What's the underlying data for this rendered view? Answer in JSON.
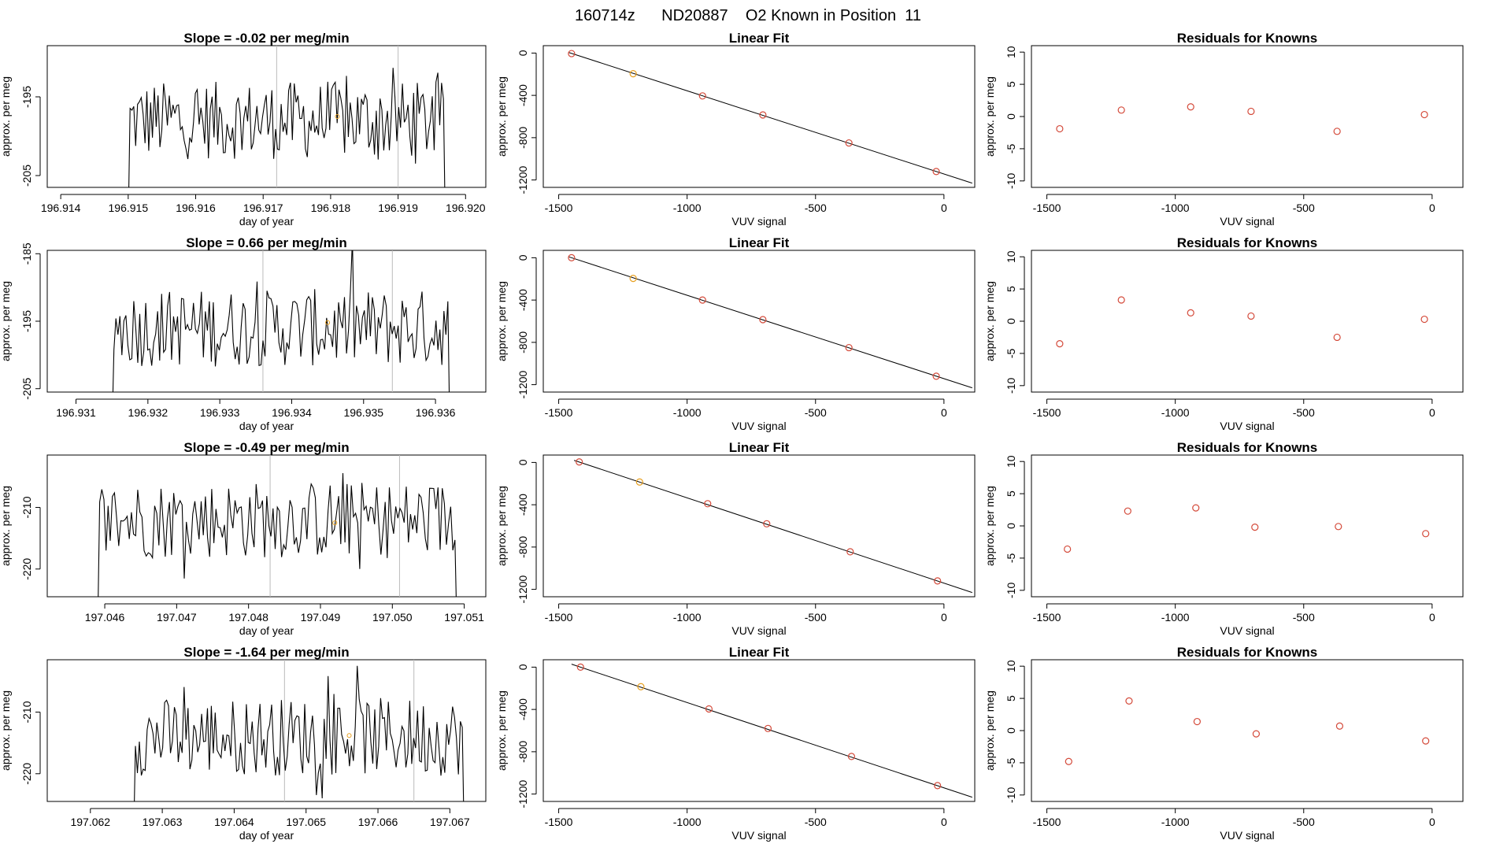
{
  "figure_title": "160714z      ND20887    O2 Known in Position  11",
  "colors": {
    "line": "#000000",
    "point": "#d44a3a",
    "highlight": "#e8a020",
    "vline": "#bbbbbb",
    "frame": "#000000"
  },
  "chart_data": [
    {
      "row": 0,
      "panel": "time",
      "type": "line",
      "title": "Slope =  -0.02  per meg/min",
      "xlabel": "day of year",
      "ylabel": "approx. per meg",
      "xlim": [
        196.9138,
        196.9203
      ],
      "ylim": [
        -206.5,
        -188.5
      ],
      "xticks": [
        196.914,
        196.915,
        196.916,
        196.917,
        196.918,
        196.919,
        196.92
      ],
      "xtick_labels": [
        "196.914",
        "196.915",
        "196.916",
        "196.917",
        "196.918",
        "196.919",
        "196.920"
      ],
      "yticks": [
        -195,
        -205
      ],
      "ytick_labels": [
        "-195",
        "-205"
      ],
      "x_start": 196.915,
      "x_end": 196.9197,
      "mean": -198,
      "vlines": [
        196.9172,
        196.919
      ],
      "highlight_point": [
        196.9181,
        -197.5
      ]
    },
    {
      "row": 0,
      "panel": "fit",
      "type": "scatter",
      "title": "Linear Fit",
      "xlabel": "VUV signal",
      "ylabel": "approx. per meg",
      "xlim": [
        -1560,
        120
      ],
      "ylim": [
        -1270,
        70
      ],
      "xticks": [
        -1500,
        -1000,
        -500,
        0
      ],
      "xtick_labels": [
        "-1500",
        "-1000",
        "-500",
        "0"
      ],
      "yticks": [
        0,
        -400,
        -800,
        -1200
      ],
      "ytick_labels": [
        "0",
        "-400",
        "-800",
        "-1200"
      ],
      "points": [
        [
          -1450,
          -5
        ],
        [
          -1210,
          -195
        ],
        [
          -940,
          -405
        ],
        [
          -705,
          -585
        ],
        [
          -370,
          -850
        ],
        [
          -30,
          -1120
        ]
      ],
      "highlight_index": 1,
      "fit_line": [
        [
          -1460,
          5
        ],
        [
          110,
          -1230
        ]
      ]
    },
    {
      "row": 0,
      "panel": "resid",
      "type": "scatter",
      "title": "Residuals for Knowns",
      "xlabel": "VUV signal",
      "ylabel": "approx. per meg",
      "xlim": [
        -1560,
        120
      ],
      "ylim": [
        -11,
        11
      ],
      "xticks": [
        -1500,
        -1000,
        -500,
        0
      ],
      "xtick_labels": [
        "-1500",
        "-1000",
        "-500",
        "0"
      ],
      "yticks": [
        10,
        5,
        0,
        -5,
        -10
      ],
      "ytick_labels": [
        "10",
        "5",
        "0",
        "-5",
        "-10"
      ],
      "points": [
        [
          -1450,
          -1.9
        ],
        [
          -1210,
          1.0
        ],
        [
          -940,
          1.5
        ],
        [
          -705,
          0.8
        ],
        [
          -370,
          -2.3
        ],
        [
          -30,
          0.3
        ]
      ]
    },
    {
      "row": 1,
      "panel": "time",
      "type": "line",
      "title": "Slope =  0.66  per meg/min",
      "xlabel": "day of year",
      "ylabel": "approx. per meg",
      "xlim": [
        196.9306,
        196.9367
      ],
      "ylim": [
        -205.5,
        -184.5
      ],
      "xticks": [
        196.931,
        196.932,
        196.933,
        196.934,
        196.935,
        196.936
      ],
      "xtick_labels": [
        "196.931",
        "196.932",
        "196.933",
        "196.934",
        "196.935",
        "196.936"
      ],
      "yticks": [
        -185,
        -195,
        -205
      ],
      "ytick_labels": [
        "-185",
        "-195",
        "-205"
      ],
      "x_start": 196.9315,
      "x_end": 196.9362,
      "mean": -196,
      "vlines": [
        196.9336,
        196.9354
      ],
      "highlight_point": [
        196.9345,
        -195.2
      ]
    },
    {
      "row": 1,
      "panel": "fit",
      "type": "scatter",
      "title": "Linear Fit",
      "xlabel": "VUV signal",
      "ylabel": "approx. per meg",
      "xlim": [
        -1560,
        120
      ],
      "ylim": [
        -1270,
        70
      ],
      "xticks": [
        -1500,
        -1000,
        -500,
        0
      ],
      "xtick_labels": [
        "-1500",
        "-1000",
        "-500",
        "0"
      ],
      "yticks": [
        0,
        -400,
        -800,
        -1200
      ],
      "ytick_labels": [
        "0",
        "-400",
        "-800",
        "-1200"
      ],
      "points": [
        [
          -1450,
          0
        ],
        [
          -1210,
          -195
        ],
        [
          -940,
          -400
        ],
        [
          -705,
          -585
        ],
        [
          -370,
          -850
        ],
        [
          -30,
          -1120
        ]
      ],
      "highlight_index": 1,
      "fit_line": [
        [
          -1460,
          8
        ],
        [
          110,
          -1230
        ]
      ]
    },
    {
      "row": 1,
      "panel": "resid",
      "type": "scatter",
      "title": "Residuals for Knowns",
      "xlabel": "VUV signal",
      "ylabel": "approx. per meg",
      "xlim": [
        -1560,
        120
      ],
      "ylim": [
        -11,
        11
      ],
      "xticks": [
        -1500,
        -1000,
        -500,
        0
      ],
      "xtick_labels": [
        "-1500",
        "-1000",
        "-500",
        "0"
      ],
      "yticks": [
        10,
        5,
        0,
        -5,
        -10
      ],
      "ytick_labels": [
        "10",
        "5",
        "0",
        "-5",
        "-10"
      ],
      "points": [
        [
          -1450,
          -3.5
        ],
        [
          -1210,
          3.3
        ],
        [
          -940,
          1.3
        ],
        [
          -705,
          0.8
        ],
        [
          -370,
          -2.5
        ],
        [
          -30,
          0.3
        ]
      ]
    },
    {
      "row": 2,
      "panel": "time",
      "type": "line",
      "title": "Slope =  -0.49  per meg/min",
      "xlabel": "day of year",
      "ylabel": "approx. per meg",
      "xlim": [
        197.0452,
        197.0513
      ],
      "ylim": [
        -224.5,
        -201.5
      ],
      "xticks": [
        197.046,
        197.047,
        197.048,
        197.049,
        197.05,
        197.051
      ],
      "xtick_labels": [
        "197.046",
        "197.047",
        "197.048",
        "197.049",
        "197.050",
        "197.051"
      ],
      "yticks": [
        -210,
        -220
      ],
      "ytick_labels": [
        "-210",
        "-220"
      ],
      "x_start": 197.0459,
      "x_end": 197.0509,
      "mean": -212,
      "vlines": [
        197.0483,
        197.0501
      ],
      "highlight_point": [
        197.0492,
        -212.5
      ]
    },
    {
      "row": 2,
      "panel": "fit",
      "type": "scatter",
      "title": "Linear Fit",
      "xlabel": "VUV signal",
      "ylabel": "approx. per meg",
      "xlim": [
        -1560,
        120
      ],
      "ylim": [
        -1270,
        70
      ],
      "xticks": [
        -1500,
        -1000,
        -500,
        0
      ],
      "xtick_labels": [
        "-1500",
        "-1000",
        "-500",
        "0"
      ],
      "yticks": [
        0,
        -400,
        -800,
        -1200
      ],
      "ytick_labels": [
        "0",
        "-400",
        "-800",
        "-1200"
      ],
      "points": [
        [
          -1420,
          5
        ],
        [
          -1185,
          -185
        ],
        [
          -920,
          -390
        ],
        [
          -690,
          -580
        ],
        [
          -365,
          -845
        ],
        [
          -25,
          -1120
        ]
      ],
      "highlight_index": 1,
      "fit_line": [
        [
          -1440,
          20
        ],
        [
          110,
          -1230
        ]
      ]
    },
    {
      "row": 2,
      "panel": "resid",
      "type": "scatter",
      "title": "Residuals for Knowns",
      "xlabel": "VUV signal",
      "ylabel": "approx. per meg",
      "xlim": [
        -1560,
        120
      ],
      "ylim": [
        -11,
        11
      ],
      "xticks": [
        -1500,
        -1000,
        -500,
        0
      ],
      "xtick_labels": [
        "-1500",
        "-1000",
        "-500",
        "0"
      ],
      "yticks": [
        10,
        5,
        0,
        -5,
        -10
      ],
      "ytick_labels": [
        "10",
        "5",
        "0",
        "-5",
        "-10"
      ],
      "points": [
        [
          -1420,
          -3.6
        ],
        [
          -1185,
          2.3
        ],
        [
          -920,
          2.8
        ],
        [
          -690,
          -0.2
        ],
        [
          -365,
          -0.1
        ],
        [
          -25,
          -1.2
        ]
      ]
    },
    {
      "row": 3,
      "panel": "time",
      "type": "line",
      "title": "Slope =  -1.64  per meg/min",
      "xlabel": "day of year",
      "ylabel": "approx. per meg",
      "xlim": [
        197.0614,
        197.0675
      ],
      "ylim": [
        -224.5,
        -201.5
      ],
      "xticks": [
        197.062,
        197.063,
        197.064,
        197.065,
        197.066,
        197.067
      ],
      "xtick_labels": [
        "197.062",
        "197.063",
        "197.064",
        "197.065",
        "197.066",
        "197.067"
      ],
      "yticks": [
        -210,
        -220
      ],
      "ytick_labels": [
        "-210",
        "-220"
      ],
      "x_start": 197.0626,
      "x_end": 197.0672,
      "mean": -214,
      "vlines": [
        197.0647,
        197.0665
      ],
      "highlight_point": [
        197.0656,
        -213.8
      ]
    },
    {
      "row": 3,
      "panel": "fit",
      "type": "scatter",
      "title": "Linear Fit",
      "xlabel": "VUV signal",
      "ylabel": "approx. per meg",
      "xlim": [
        -1560,
        120
      ],
      "ylim": [
        -1270,
        70
      ],
      "xticks": [
        -1500,
        -1000,
        -500,
        0
      ],
      "xtick_labels": [
        "-1500",
        "-1000",
        "-500",
        "0"
      ],
      "yticks": [
        0,
        -400,
        -800,
        -1200
      ],
      "ytick_labels": [
        "0",
        "-400",
        "-800",
        "-1200"
      ],
      "points": [
        [
          -1415,
          0
        ],
        [
          -1180,
          -185
        ],
        [
          -915,
          -395
        ],
        [
          -685,
          -580
        ],
        [
          -360,
          -845
        ],
        [
          -25,
          -1120
        ]
      ],
      "highlight_index": 1,
      "fit_line": [
        [
          -1450,
          28
        ],
        [
          110,
          -1230
        ]
      ]
    },
    {
      "row": 3,
      "panel": "resid",
      "type": "scatter",
      "title": "Residuals for Knowns",
      "xlabel": "VUV signal",
      "ylabel": "approx. per meg",
      "xlim": [
        -1560,
        120
      ],
      "ylim": [
        -11,
        11
      ],
      "xticks": [
        -1500,
        -1000,
        -500,
        0
      ],
      "xtick_labels": [
        "-1500",
        "-1000",
        "-500",
        "0"
      ],
      "yticks": [
        10,
        5,
        0,
        -5,
        -10
      ],
      "ytick_labels": [
        "10",
        "5",
        "0",
        "-5",
        "-10"
      ],
      "points": [
        [
          -1415,
          -4.8
        ],
        [
          -1180,
          4.6
        ],
        [
          -915,
          1.4
        ],
        [
          -685,
          -0.5
        ],
        [
          -360,
          0.7
        ],
        [
          -25,
          -1.6
        ]
      ]
    }
  ]
}
